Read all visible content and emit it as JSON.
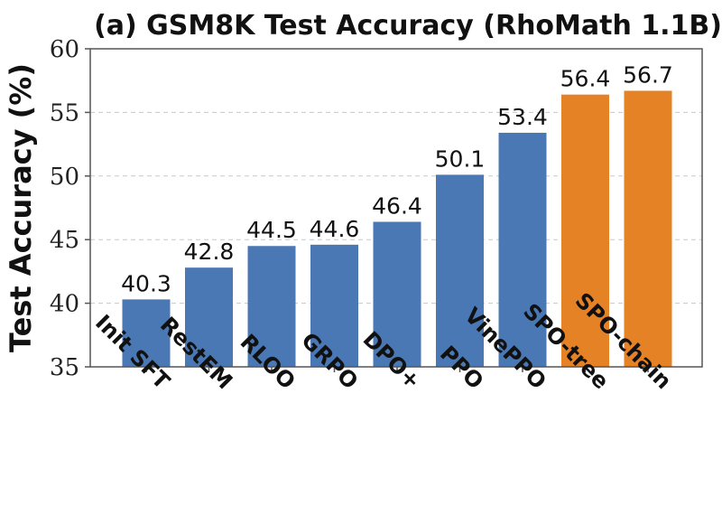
{
  "chart_data": {
    "type": "bar",
    "title": "(a) GSM8K Test Accuracy (RhoMath 1.1B)",
    "xlabel": "",
    "ylabel": "Test Accuracy (%)",
    "ylim": [
      35,
      60
    ],
    "yticks": [
      35,
      40,
      45,
      50,
      55,
      60
    ],
    "grid": true,
    "categories": [
      "Init SFT",
      "RestEM",
      "RLOO",
      "GRPO",
      "DPO+",
      "PPO",
      "VinePPO",
      "SPO-tree",
      "SPO-chain"
    ],
    "values": [
      40.3,
      42.8,
      44.5,
      44.6,
      46.4,
      50.1,
      53.4,
      56.4,
      56.7
    ],
    "data_labels": [
      "40.3",
      "42.8",
      "44.5",
      "44.6",
      "46.4",
      "50.1",
      "53.4",
      "56.4",
      "56.7"
    ],
    "bar_colors": [
      "#4a78b4",
      "#4a78b4",
      "#4a78b4",
      "#4a78b4",
      "#4a78b4",
      "#4a78b4",
      "#4a78b4",
      "#e68226",
      "#e68226"
    ]
  }
}
